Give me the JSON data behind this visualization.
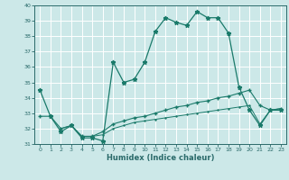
{
  "xlabel": "Humidex (Indice chaleur)",
  "bg_color": "#cce8e8",
  "grid_color": "#ffffff",
  "line_color": "#1a7a6a",
  "xlim": [
    -0.5,
    23.5
  ],
  "ylim": [
    31,
    40
  ],
  "yticks": [
    31,
    32,
    33,
    34,
    35,
    36,
    37,
    38,
    39,
    40
  ],
  "xticks": [
    0,
    1,
    2,
    3,
    4,
    5,
    6,
    7,
    8,
    9,
    10,
    11,
    12,
    13,
    14,
    15,
    16,
    17,
    18,
    19,
    20,
    21,
    22,
    23
  ],
  "line1_x": [
    0,
    1,
    2,
    3,
    4,
    5,
    6,
    7,
    8,
    9,
    10,
    11,
    12,
    13,
    14,
    15,
    16,
    17,
    18,
    19,
    20,
    21,
    22,
    23
  ],
  "line1_y": [
    34.5,
    32.8,
    31.8,
    32.2,
    31.4,
    31.4,
    31.2,
    36.3,
    35.0,
    35.2,
    36.3,
    38.3,
    39.2,
    38.9,
    38.7,
    39.6,
    39.2,
    39.2,
    38.2,
    34.7,
    33.2,
    32.2,
    33.2,
    33.2
  ],
  "line2_x": [
    0,
    1,
    2,
    3,
    4,
    5,
    6,
    7,
    8,
    9,
    10,
    11,
    12,
    13,
    14,
    15,
    16,
    17,
    18,
    19,
    20,
    21,
    22,
    23
  ],
  "line2_y": [
    32.8,
    32.8,
    32.0,
    32.2,
    31.5,
    31.5,
    31.8,
    32.3,
    32.5,
    32.7,
    32.8,
    33.0,
    33.2,
    33.4,
    33.5,
    33.7,
    33.8,
    34.0,
    34.1,
    34.3,
    34.5,
    33.5,
    33.2,
    33.3
  ],
  "line3_x": [
    2,
    3,
    4,
    5,
    6,
    7,
    8,
    9,
    10,
    11,
    12,
    13,
    14,
    15,
    16,
    17,
    18,
    19,
    20,
    21,
    22,
    23
  ],
  "line3_y": [
    32.0,
    32.2,
    31.5,
    31.5,
    31.6,
    32.0,
    32.2,
    32.4,
    32.5,
    32.6,
    32.7,
    32.8,
    32.9,
    33.0,
    33.1,
    33.2,
    33.3,
    33.4,
    33.5,
    32.3,
    33.2,
    33.3
  ],
  "tick_color": "#2a6a6a",
  "spine_color": "#2a6a6a"
}
